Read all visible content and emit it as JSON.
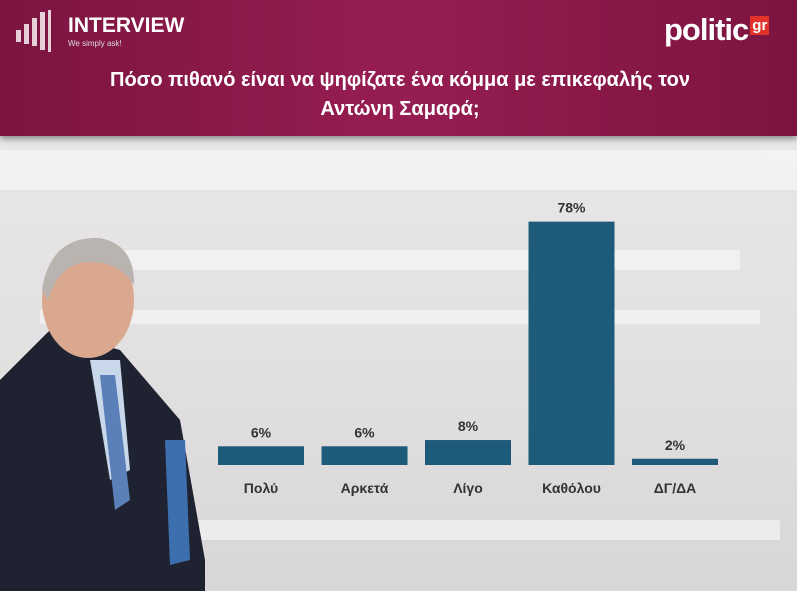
{
  "header": {
    "brand": "INTERVIEW",
    "tagline": "We simply ask!",
    "logo": "politic",
    "logo_suffix": "gr"
  },
  "chart_data": {
    "type": "bar",
    "title": "Πόσο πιθανό είναι να ψηφίζατε ένα κόμμα με επικεφαλής τον Αντώνη Σαμαρά;",
    "categories": [
      "Πολύ",
      "Αρκετά",
      "Λίγο",
      "Καθόλου",
      "ΔΓ/ΔΑ"
    ],
    "values": [
      6,
      6,
      8,
      78,
      2
    ],
    "value_labels": [
      "6%",
      "6%",
      "8%",
      "78%",
      "2%"
    ],
    "color": "#1e5a7a"
  }
}
